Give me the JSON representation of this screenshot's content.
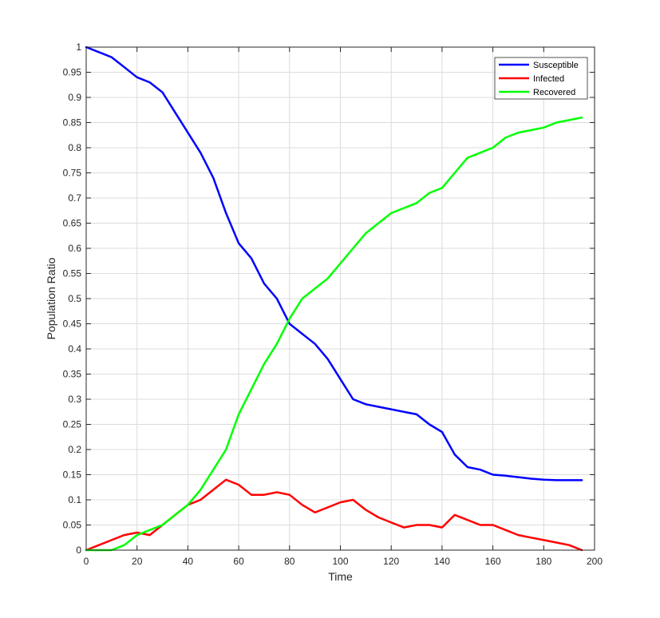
{
  "chart_data": {
    "type": "line",
    "title": "",
    "xlabel": "Time",
    "ylabel": "Population Ratio",
    "xlim": [
      0,
      200
    ],
    "ylim": [
      0,
      1
    ],
    "xticks": [
      "0",
      "20",
      "40",
      "60",
      "80",
      "100",
      "120",
      "140",
      "160",
      "180",
      "200"
    ],
    "yticks": [
      "0",
      "0.05",
      "0.1",
      "0.15",
      "0.2",
      "0.25",
      "0.3",
      "0.35",
      "0.4",
      "0.45",
      "0.5",
      "0.55",
      "0.6",
      "0.65",
      "0.7",
      "0.75",
      "0.8",
      "0.85",
      "0.9",
      "0.95",
      "1"
    ],
    "grid": true,
    "legend_position": "top-right",
    "series": [
      {
        "name": "Susceptible",
        "color": "#0000ff",
        "x": [
          0,
          5,
          10,
          15,
          20,
          25,
          30,
          35,
          40,
          45,
          50,
          55,
          60,
          65,
          70,
          75,
          80,
          85,
          90,
          95,
          100,
          105,
          110,
          115,
          120,
          125,
          130,
          135,
          140,
          145,
          150,
          155,
          160,
          165,
          170,
          175,
          180,
          185,
          190,
          195
        ],
        "y": [
          1.0,
          0.99,
          0.98,
          0.96,
          0.94,
          0.93,
          0.91,
          0.87,
          0.83,
          0.79,
          0.74,
          0.67,
          0.61,
          0.58,
          0.53,
          0.5,
          0.45,
          0.43,
          0.41,
          0.38,
          0.34,
          0.3,
          0.29,
          0.285,
          0.28,
          0.275,
          0.27,
          0.25,
          0.235,
          0.19,
          0.165,
          0.16,
          0.15,
          0.148,
          0.145,
          0.142,
          0.14,
          0.139,
          0.139,
          0.139
        ]
      },
      {
        "name": "Infected",
        "color": "#ff0000",
        "x": [
          0,
          5,
          10,
          15,
          20,
          25,
          30,
          35,
          40,
          45,
          50,
          55,
          60,
          65,
          70,
          75,
          80,
          85,
          90,
          95,
          100,
          105,
          110,
          115,
          120,
          125,
          130,
          135,
          140,
          145,
          150,
          155,
          160,
          165,
          170,
          175,
          180,
          185,
          190,
          195
        ],
        "y": [
          0.0,
          0.01,
          0.02,
          0.03,
          0.035,
          0.03,
          0.05,
          0.07,
          0.09,
          0.1,
          0.12,
          0.14,
          0.13,
          0.11,
          0.11,
          0.115,
          0.11,
          0.09,
          0.075,
          0.085,
          0.095,
          0.1,
          0.08,
          0.065,
          0.055,
          0.045,
          0.05,
          0.05,
          0.045,
          0.07,
          0.06,
          0.05,
          0.05,
          0.04,
          0.03,
          0.025,
          0.02,
          0.015,
          0.01,
          0.0
        ]
      },
      {
        "name": "Recovered",
        "color": "#00ff00",
        "x": [
          0,
          5,
          10,
          15,
          20,
          25,
          30,
          35,
          40,
          45,
          50,
          55,
          60,
          65,
          70,
          75,
          80,
          85,
          90,
          95,
          100,
          105,
          110,
          115,
          120,
          125,
          130,
          135,
          140,
          145,
          150,
          155,
          160,
          165,
          170,
          175,
          180,
          185,
          190,
          195
        ],
        "y": [
          0.0,
          0.0,
          0.0,
          0.01,
          0.03,
          0.04,
          0.05,
          0.07,
          0.09,
          0.12,
          0.16,
          0.2,
          0.27,
          0.32,
          0.37,
          0.41,
          0.46,
          0.5,
          0.52,
          0.54,
          0.57,
          0.6,
          0.63,
          0.65,
          0.67,
          0.68,
          0.69,
          0.71,
          0.72,
          0.75,
          0.78,
          0.79,
          0.8,
          0.82,
          0.83,
          0.835,
          0.84,
          0.85,
          0.855,
          0.86
        ]
      }
    ]
  }
}
